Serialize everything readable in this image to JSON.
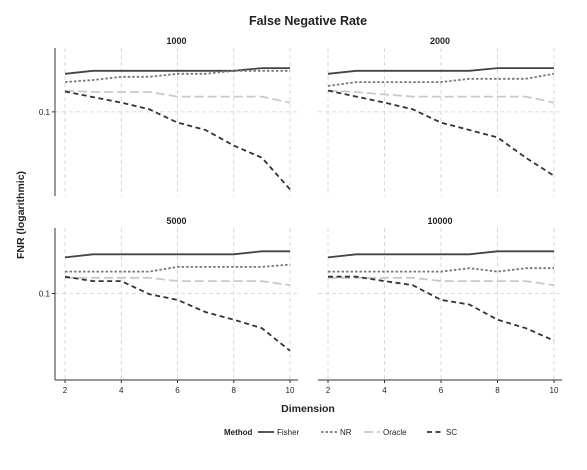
{
  "chart_data": {
    "type": "line",
    "title": "False Negative Rate",
    "xlabel": "Dimension",
    "ylabel": "FNR (logarithmic)",
    "y_scale": "log",
    "grid": true,
    "legend_title": "Method",
    "legend_position": "bottom",
    "x": [
      2,
      3,
      4,
      5,
      6,
      7,
      8,
      9,
      10
    ],
    "xlim": [
      2,
      10
    ],
    "x_ticks": [
      2,
      4,
      6,
      8,
      10
    ],
    "x_tick_labels": [
      "2",
      "4",
      "6",
      "8",
      "10"
    ],
    "ylim": [
      0.028,
      0.24
    ],
    "y_ticks": [
      0.1
    ],
    "y_tick_labels": [
      "0.1"
    ],
    "colors": {
      "Fisher": "#444444",
      "NR": "#777777",
      "Oracle": "#c9c9c9",
      "SC": "#333333",
      "grid": "#d0d0d0",
      "text": "#222222"
    },
    "series_styles": {
      "Fisher": "solid",
      "NR": "dotted",
      "Oracle": "longdash",
      "SC": "dashed"
    },
    "panels": [
      {
        "title": "1000",
        "series": [
          {
            "name": "Fisher",
            "values": [
              0.178,
              0.186,
              0.186,
              0.186,
              0.186,
              0.186,
              0.186,
              0.194,
              0.194
            ]
          },
          {
            "name": "NR",
            "values": [
              0.157,
              0.162,
              0.17,
              0.17,
              0.178,
              0.178,
              0.186,
              0.186,
              0.186
            ]
          },
          {
            "name": "Oracle",
            "values": [
              0.138,
              0.135,
              0.135,
              0.135,
              0.126,
              0.126,
              0.126,
              0.126,
              0.115
            ]
          },
          {
            "name": "SC",
            "values": [
              0.136,
              0.125,
              0.115,
              0.104,
              0.085,
              0.076,
              0.06,
              0.05,
              0.031
            ]
          }
        ]
      },
      {
        "title": "2000",
        "series": [
          {
            "name": "Fisher",
            "values": [
              0.178,
              0.186,
              0.186,
              0.186,
              0.186,
              0.186,
              0.194,
              0.194,
              0.194
            ]
          },
          {
            "name": "NR",
            "values": [
              0.148,
              0.157,
              0.157,
              0.157,
              0.157,
              0.165,
              0.165,
              0.165,
              0.178
            ]
          },
          {
            "name": "Oracle",
            "values": [
              0.138,
              0.135,
              0.13,
              0.126,
              0.126,
              0.126,
              0.126,
              0.126,
              0.115
            ]
          },
          {
            "name": "SC",
            "values": [
              0.138,
              0.126,
              0.115,
              0.104,
              0.085,
              0.076,
              0.068,
              0.05,
              0.038
            ]
          }
        ]
      },
      {
        "title": "5000",
        "series": [
          {
            "name": "Fisher",
            "values": [
              0.17,
              0.178,
              0.178,
              0.178,
              0.178,
              0.178,
              0.178,
              0.186,
              0.186
            ]
          },
          {
            "name": "NR",
            "values": [
              0.138,
              0.138,
              0.138,
              0.138,
              0.148,
              0.148,
              0.148,
              0.148,
              0.153
            ]
          },
          {
            "name": "Oracle",
            "values": [
              0.126,
              0.126,
              0.126,
              0.126,
              0.12,
              0.12,
              0.12,
              0.12,
              0.113
            ]
          },
          {
            "name": "SC",
            "values": [
              0.128,
              0.12,
              0.12,
              0.099,
              0.091,
              0.076,
              0.068,
              0.06,
              0.043
            ]
          }
        ]
      },
      {
        "title": "10000",
        "series": [
          {
            "name": "Fisher",
            "values": [
              0.17,
              0.178,
              0.178,
              0.178,
              0.178,
              0.178,
              0.186,
              0.186,
              0.186
            ]
          },
          {
            "name": "NR",
            "values": [
              0.138,
              0.138,
              0.138,
              0.138,
              0.138,
              0.145,
              0.138,
              0.145,
              0.145
            ]
          },
          {
            "name": "Oracle",
            "values": [
              0.126,
              0.126,
              0.126,
              0.126,
              0.12,
              0.12,
              0.12,
              0.12,
              0.113
            ]
          },
          {
            "name": "SC",
            "values": [
              0.128,
              0.128,
              0.12,
              0.113,
              0.091,
              0.085,
              0.068,
              0.06,
              0.05
            ]
          }
        ]
      }
    ]
  }
}
